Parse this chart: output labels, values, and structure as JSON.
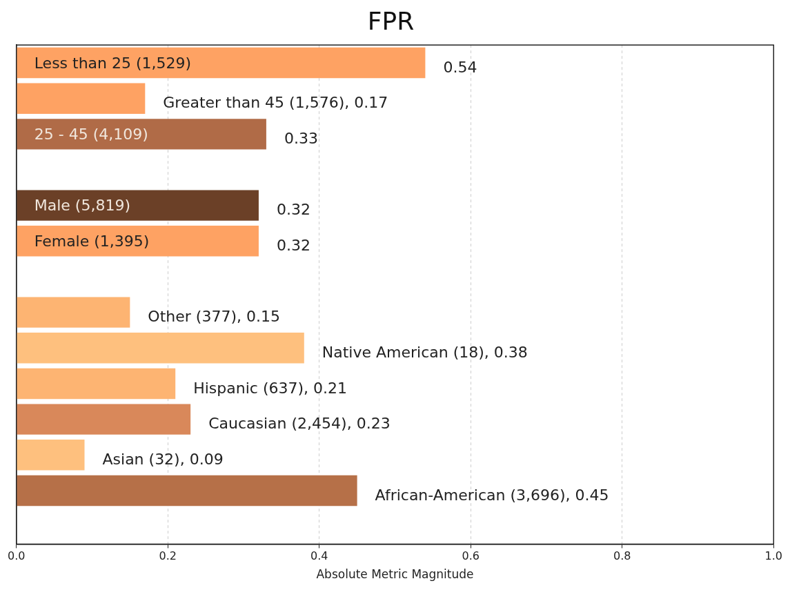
{
  "chart_data": {
    "type": "bar",
    "orientation": "horizontal",
    "title": "FPR",
    "xlabel": "Absolute Metric Magnitude",
    "categories": [
      "Less than 25 (1,529)",
      null,
      "25 - 45 (4,109)",
      null,
      "Male (5,819)",
      "Female (1,395)",
      null,
      null,
      null,
      null,
      null,
      null,
      null,
      null
    ],
    "values": [
      0.54,
      0.17,
      0.33,
      null,
      0.32,
      0.32,
      null,
      0.15,
      0.38,
      0.21,
      0.23,
      0.09,
      0.45,
      null
    ],
    "value_labels": [
      "0.54",
      "Greater than 45 (1,576), 0.17",
      "0.33",
      null,
      "0.32",
      "0.32",
      null,
      "Other (377), 0.15",
      "Native American (18), 0.38",
      "Hispanic (637), 0.21",
      "Caucasian (2,454), 0.23",
      "Asian (32), 0.09",
      "African-American (3,696), 0.45",
      null
    ],
    "colors": [
      "#fea263",
      "#fea263",
      "#b06b47",
      "#ffffff",
      "#6b4027",
      "#fea263",
      "#ffffff",
      "#fdb472",
      "#fec07e",
      "#fdb472",
      "#d9885a",
      "#fec07e",
      "#b67048",
      "#ffffff"
    ],
    "xlim": [
      0,
      1
    ],
    "xticks": [
      {
        "value": 0,
        "label": "0.0"
      },
      0.2,
      0.4,
      0.6,
      0.8,
      {
        "value": 1,
        "label": "1.0"
      }
    ],
    "grid": "x",
    "legend": false
  }
}
